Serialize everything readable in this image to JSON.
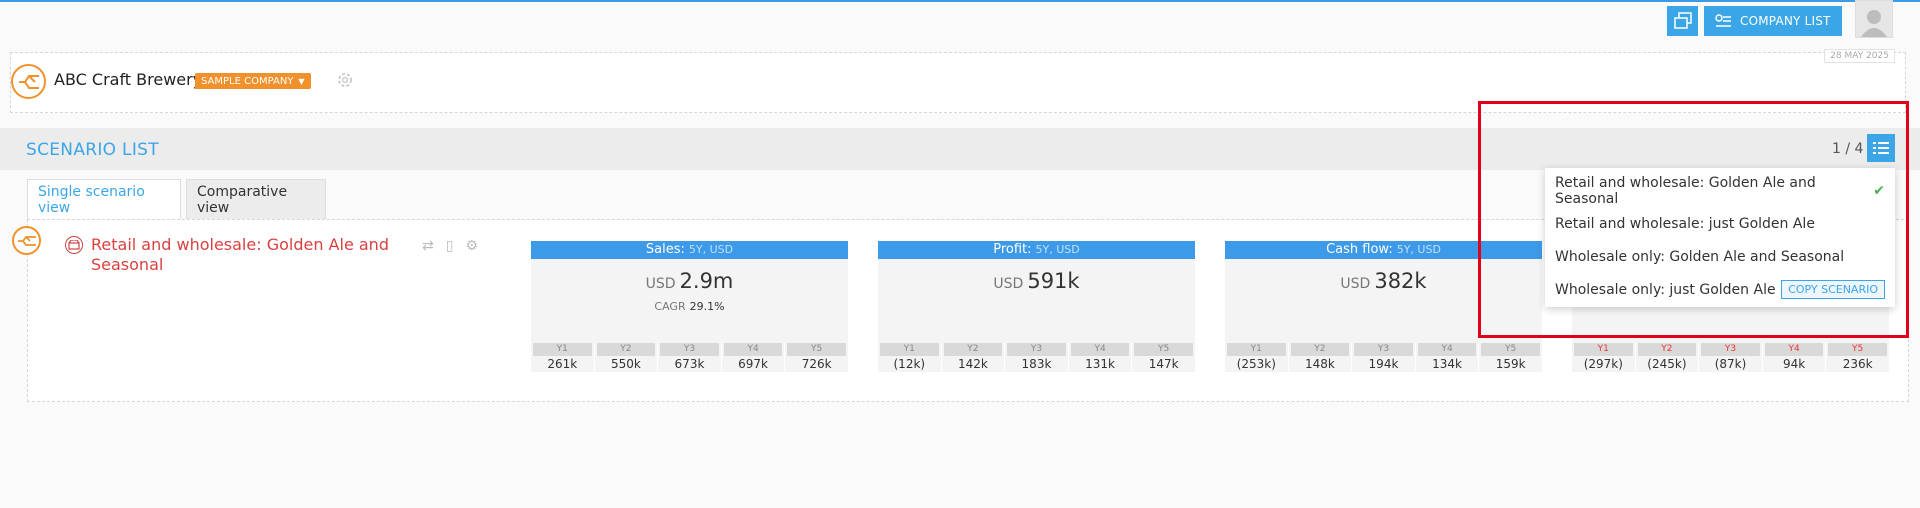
{
  "header": {
    "company_list_label": "COMPANY LIST",
    "date": "28 MAY 2025"
  },
  "company": {
    "name": "ABC Craft Brewery",
    "badge": "SAMPLE COMPANY"
  },
  "scenario_list": {
    "title": "SCENARIO LIST",
    "count": "1 / 4"
  },
  "tabs": [
    {
      "label": "Single scenario view",
      "active": true
    },
    {
      "label": "Comparative view",
      "active": false
    }
  ],
  "scenario": {
    "name": "Retail and wholesale: Golden Ale and Seasonal"
  },
  "cards": [
    {
      "title": "Sales:",
      "sub": "5Y, USD",
      "currency": "USD",
      "value": "2.9m",
      "cagr_label": "CAGR",
      "cagr": "29.1%",
      "years": [
        "Y1",
        "Y2",
        "Y3",
        "Y4",
        "Y5"
      ],
      "values": [
        "261k",
        "550k",
        "673k",
        "697k",
        "726k"
      ]
    },
    {
      "title": "Profit:",
      "sub": "5Y, USD",
      "currency": "USD",
      "value": "591k",
      "years": [
        "Y1",
        "Y2",
        "Y3",
        "Y4",
        "Y5"
      ],
      "values": [
        "(12k)",
        "142k",
        "183k",
        "131k",
        "147k"
      ]
    },
    {
      "title": "Cash flow:",
      "sub": "5Y, USD",
      "currency": "USD",
      "value": "382k",
      "years": [
        "Y1",
        "Y2",
        "Y3",
        "Y4",
        "Y5"
      ],
      "values": [
        "(253k)",
        "148k",
        "194k",
        "134k",
        "159k"
      ]
    },
    {
      "years": [
        "Y1",
        "Y2",
        "Y3",
        "Y4",
        "Y5"
      ],
      "values": [
        "(297k)",
        "(245k)",
        "(87k)",
        "94k",
        "236k"
      ]
    }
  ],
  "dropdown": {
    "items": [
      {
        "label": "Retail and wholesale: Golden Ale and Seasonal",
        "selected": true
      },
      {
        "label": "Retail and wholesale: just Golden Ale"
      },
      {
        "label": "Wholesale only: Golden Ale and Seasonal"
      },
      {
        "label": "Wholesale only: just Golden Ale"
      }
    ],
    "copy_label": "COPY SCENARIO"
  },
  "colors": {
    "accent": "#3aa6e8",
    "brand_orange": "#f0912c",
    "scenario_red": "#d9413f",
    "highlight": "#e3001b"
  },
  "icons": {
    "top_left_button": "multi-window-icon",
    "company_list": "company-list-icon",
    "list_button": "list-icon"
  }
}
